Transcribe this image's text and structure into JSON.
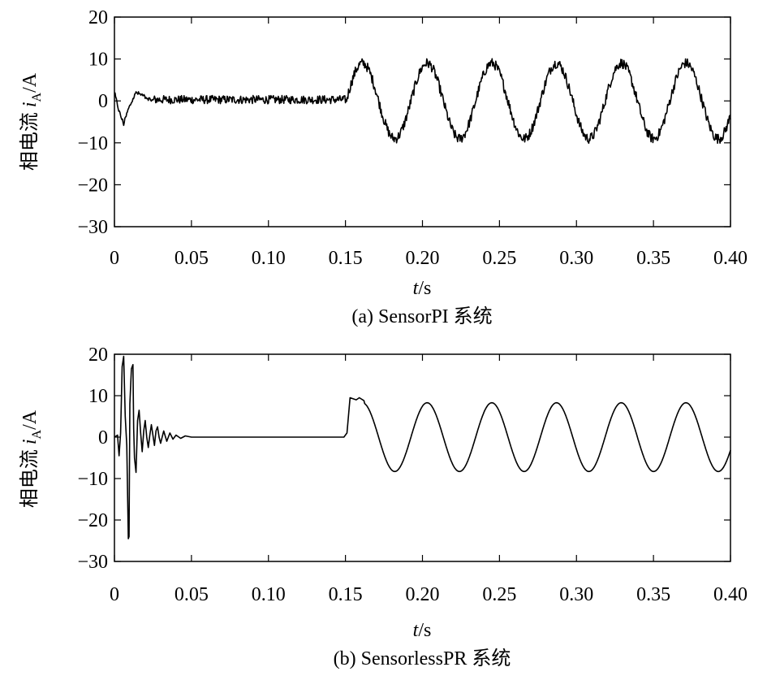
{
  "chart_data": [
    {
      "type": "line",
      "caption": "(a) SensorPI 系统",
      "ylabel_main": "相电流 ",
      "ylabel_var": "i",
      "ylabel_sub": "A",
      "ylabel_unit": "/A",
      "xlabel_var": "t",
      "xlabel_unit": "/s",
      "xlim": [
        0,
        0.4
      ],
      "ylim": [
        -30,
        20
      ],
      "x_ticks": [
        "0",
        "0.05",
        "0.10",
        "0.15",
        "0.20",
        "0.25",
        "0.30",
        "0.35",
        "0.40"
      ],
      "y_ticks": [
        "20",
        "10",
        "0",
        "−10",
        "−20",
        "−30"
      ],
      "grid": false,
      "series": [
        {
          "segments": [
            {
              "from": 0.0,
              "to": 0.15,
              "kind": "noise",
              "mean": 0.3,
              "noise": 1.0,
              "transients": [
                {
                  "t": 0.0,
                  "v": 2.0
                },
                {
                  "t": 0.003,
                  "v": -2.5
                },
                {
                  "t": 0.006,
                  "v": -5.5
                },
                {
                  "t": 0.009,
                  "v": -2.0
                },
                {
                  "t": 0.014,
                  "v": 2.0
                },
                {
                  "t": 0.02,
                  "v": 1.0
                },
                {
                  "t": 0.025,
                  "v": 0.0
                }
              ]
            },
            {
              "from": 0.15,
              "to": 0.4,
              "kind": "sine",
              "amplitude": 9.0,
              "frequency": 23.8,
              "phase_at": 0.1505,
              "noise": 1.2
            }
          ]
        }
      ]
    },
    {
      "type": "line",
      "caption": "(b) SensorlessPR 系统",
      "ylabel_main": "相电流 ",
      "ylabel_var": "i",
      "ylabel_sub": "A",
      "ylabel_unit": "/A",
      "xlabel_var": "t",
      "xlabel_unit": "/s",
      "xlim": [
        0,
        0.4
      ],
      "ylim": [
        -30,
        20
      ],
      "x_ticks": [
        "0",
        "0.05",
        "0.10",
        "0.15",
        "0.20",
        "0.25",
        "0.30",
        "0.35",
        "0.40"
      ],
      "y_ticks": [
        "20",
        "10",
        "0",
        "−10",
        "−20",
        "−30"
      ],
      "grid": false,
      "series": [
        {
          "points": [
            [
              0.0,
              0.0
            ],
            [
              0.002,
              0.5
            ],
            [
              0.003,
              -4.5
            ],
            [
              0.004,
              1.0
            ],
            [
              0.005,
              17.0
            ],
            [
              0.006,
              19.5
            ],
            [
              0.007,
              5.0
            ],
            [
              0.008,
              -2.0
            ],
            [
              0.009,
              -24.5
            ],
            [
              0.0095,
              -24.0
            ],
            [
              0.01,
              8.0
            ],
            [
              0.011,
              16.5
            ],
            [
              0.012,
              17.5
            ],
            [
              0.0125,
              2.0
            ],
            [
              0.013,
              -5.0
            ],
            [
              0.014,
              -8.5
            ],
            [
              0.015,
              4.0
            ],
            [
              0.016,
              6.5
            ],
            [
              0.017,
              1.0
            ],
            [
              0.018,
              -3.5
            ],
            [
              0.019,
              1.5
            ],
            [
              0.02,
              4.0
            ],
            [
              0.021,
              0.0
            ],
            [
              0.022,
              -2.5
            ],
            [
              0.023,
              0.5
            ],
            [
              0.024,
              3.0
            ],
            [
              0.025,
              0.5
            ],
            [
              0.026,
              -2.0
            ],
            [
              0.027,
              1.5
            ],
            [
              0.028,
              2.5
            ],
            [
              0.029,
              0.0
            ],
            [
              0.03,
              -1.5
            ],
            [
              0.032,
              1.5
            ],
            [
              0.034,
              -1.0
            ],
            [
              0.036,
              1.0
            ],
            [
              0.038,
              -0.5
            ],
            [
              0.04,
              0.5
            ],
            [
              0.043,
              -0.3
            ],
            [
              0.046,
              0.3
            ],
            [
              0.05,
              0.0
            ],
            [
              0.06,
              0.0
            ],
            [
              0.1,
              0.0
            ],
            [
              0.149,
              0.0
            ],
            [
              0.151,
              1.0
            ],
            [
              0.153,
              9.5
            ],
            [
              0.157,
              9.0
            ],
            [
              0.159,
              9.5
            ],
            [
              0.162,
              8.8
            ]
          ],
          "continuation": {
            "from": 0.162,
            "to": 0.4,
            "kind": "sine",
            "amplitude": 8.3,
            "frequency": 23.8,
            "phase_at": 0.1505
          }
        }
      ]
    }
  ]
}
